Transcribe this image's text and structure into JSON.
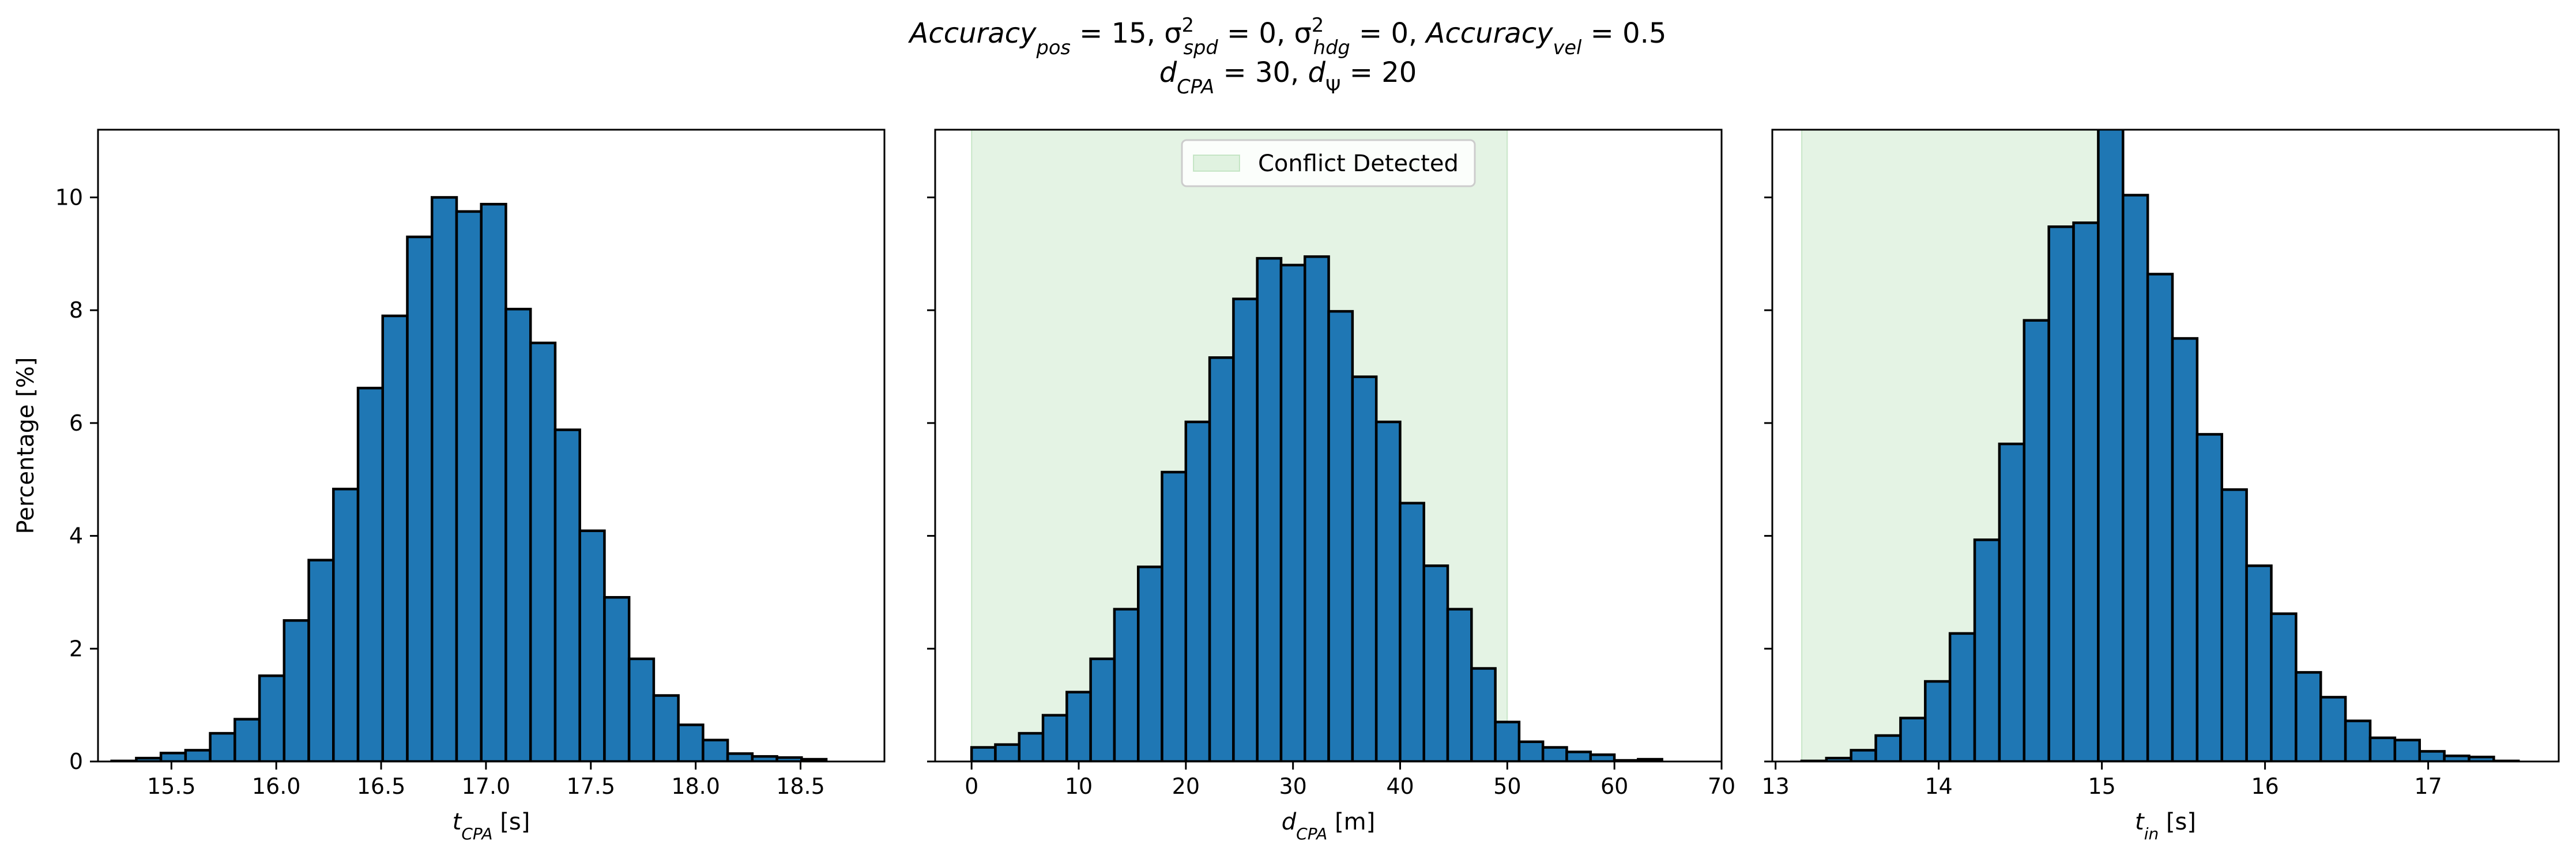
{
  "figure": {
    "title_line1": "Accuracy_pos = 15, σ²_spd = 0, σ²_hdg = 0, Accuracy_vel = 0.5",
    "title_line2": "d_CPA = 30, d_Ψ = 20"
  },
  "chart_data": [
    {
      "type": "bar",
      "subtype": "histogram",
      "xlabel": "t_CPA [s]",
      "ylabel": "Percentage [%]",
      "xlim": [
        15.15,
        18.9
      ],
      "ylim": [
        0,
        11.2
      ],
      "xticks": [
        15.5,
        16.0,
        16.5,
        17.0,
        17.5,
        18.0,
        18.5
      ],
      "xtick_labels": [
        "15.5",
        "16.0",
        "16.5",
        "17.0",
        "17.5",
        "18.0",
        "18.5"
      ],
      "yticks": [
        0,
        2,
        4,
        6,
        8,
        10
      ],
      "ytick_labels": [
        "0",
        "2",
        "4",
        "6",
        "8",
        "10"
      ],
      "bin_start": 15.215,
      "bin_width": 0.1175,
      "values": [
        0.01,
        0.06,
        0.15,
        0.2,
        0.5,
        0.75,
        1.52,
        2.5,
        3.57,
        4.83,
        6.62,
        7.9,
        9.3,
        10.0,
        9.75,
        9.88,
        8.02,
        7.42,
        5.88,
        4.09,
        2.91,
        1.82,
        1.17,
        0.65,
        0.38,
        0.14,
        0.09,
        0.07,
        0.04
      ],
      "color": "#1f77b4",
      "grid": false
    },
    {
      "type": "bar",
      "subtype": "histogram",
      "xlabel": "d_CPA [m]",
      "xlim": [
        -3.4,
        70
      ],
      "ylim": [
        0,
        11.2
      ],
      "xticks": [
        0,
        10,
        20,
        30,
        40,
        50,
        60,
        70
      ],
      "xtick_labels": [
        "0",
        "10",
        "20",
        "30",
        "40",
        "50",
        "60",
        "70"
      ],
      "yticks": [
        0,
        2,
        4,
        6,
        8,
        10
      ],
      "bin_start": 0,
      "bin_width": 2.222,
      "values": [
        0.25,
        0.3,
        0.5,
        0.82,
        1.23,
        1.82,
        2.7,
        3.45,
        5.13,
        6.02,
        7.16,
        8.2,
        8.92,
        8.8,
        8.95,
        7.98,
        6.82,
        6.02,
        4.58,
        3.47,
        2.7,
        1.65,
        0.7,
        0.35,
        0.25,
        0.17,
        0.12,
        0.02,
        0.04
      ],
      "color": "#1f77b4",
      "shaded_region": {
        "x": [
          0,
          50
        ],
        "color": "#2ca02c",
        "label": "Conflict Detected"
      },
      "legend": {
        "entries": [
          "Conflict Detected"
        ],
        "position": "upper center"
      },
      "grid": false
    },
    {
      "type": "bar",
      "subtype": "histogram",
      "xlabel": "t_in [s]",
      "xlim": [
        12.98,
        17.8
      ],
      "ylim": [
        0,
        11.2
      ],
      "xticks": [
        13,
        14,
        15,
        16,
        17
      ],
      "xtick_labels": [
        "13",
        "14",
        "15",
        "16",
        "17"
      ],
      "yticks": [
        0,
        2,
        4,
        6,
        8,
        10
      ],
      "bin_start": 13.16,
      "bin_width": 0.1515,
      "values": [
        0.01,
        0.06,
        0.2,
        0.46,
        0.77,
        1.42,
        2.27,
        3.93,
        5.63,
        7.82,
        9.48,
        9.55,
        11.25,
        10.04,
        8.64,
        7.5,
        5.8,
        4.82,
        3.47,
        2.62,
        1.58,
        1.14,
        0.72,
        0.42,
        0.38,
        0.18,
        0.1,
        0.08,
        0.01
      ],
      "color": "#1f77b4",
      "shaded_region": {
        "x": [
          13.16,
          15.02
        ],
        "color": "#2ca02c"
      },
      "grid": false
    }
  ]
}
